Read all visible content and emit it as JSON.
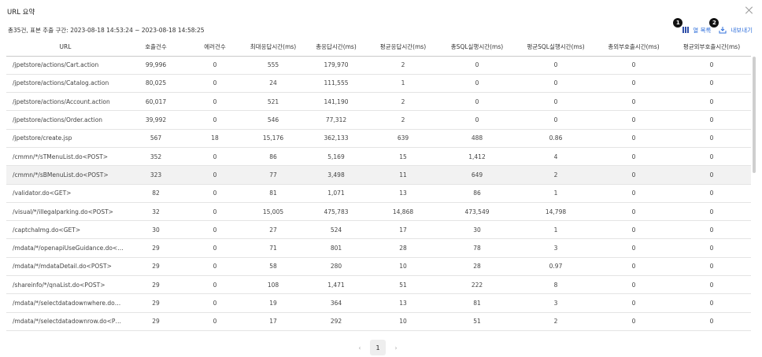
{
  "dialog": {
    "title": "URL 요약"
  },
  "summary": "총35건, 표본 추출 구간: 2023-08-18 14:53:24 ~ 2023-08-18 14:58:25",
  "toolbar": {
    "columns_label": "열 목록",
    "export_label": "내보내기",
    "badge1": "1",
    "badge2": "2"
  },
  "table": {
    "columns": [
      "URL",
      "호출건수",
      "에러건수",
      "최대응답시간(ms)",
      "총응답시간(ms)",
      "평균응답시간(ms)",
      "총SQL실행시간(ms)",
      "평균SQL실행시간(ms)",
      "총외부호출시간(ms)",
      "평균외부호출시간(ms)"
    ],
    "rows": [
      [
        "/jpetstore/actions/Cart.action",
        "99,996",
        "0",
        "555",
        "179,970",
        "2",
        "0",
        "0",
        "0",
        "0"
      ],
      [
        "/jpetstore/actions/Catalog.action",
        "80,025",
        "0",
        "24",
        "111,555",
        "1",
        "0",
        "0",
        "0",
        "0"
      ],
      [
        "/jpetstore/actions/Account.action",
        "60,017",
        "0",
        "521",
        "141,190",
        "2",
        "0",
        "0",
        "0",
        "0"
      ],
      [
        "/jpetstore/actions/Order.action",
        "39,992",
        "0",
        "546",
        "77,312",
        "2",
        "0",
        "0",
        "0",
        "0"
      ],
      [
        "/jpetstore/create.jsp",
        "567",
        "18",
        "15,176",
        "362,133",
        "639",
        "488",
        "0.86",
        "0",
        "0"
      ],
      [
        "/cmmn/*/sTMenuList.do<POST>",
        "352",
        "0",
        "86",
        "5,169",
        "15",
        "1,412",
        "4",
        "0",
        "0"
      ],
      [
        "/cmmn/*/sBMenuList.do<POST>",
        "323",
        "0",
        "77",
        "3,498",
        "11",
        "649",
        "2",
        "0",
        "0"
      ],
      [
        "/validator.do<GET>",
        "82",
        "0",
        "81",
        "1,071",
        "13",
        "86",
        "1",
        "0",
        "0"
      ],
      [
        "/visual/*/illegalparking.do<POST>",
        "32",
        "0",
        "15,005",
        "475,783",
        "14,868",
        "473,549",
        "14,798",
        "0",
        "0"
      ],
      [
        "/captchaImg.do<GET>",
        "30",
        "0",
        "27",
        "524",
        "17",
        "30",
        "1",
        "0",
        "0"
      ],
      [
        "/mdata/*/openapiUseGuidance.do<P···",
        "29",
        "0",
        "71",
        "801",
        "28",
        "78",
        "3",
        "0",
        "0"
      ],
      [
        "/mdata/*/mdataDetail.do<POST>",
        "29",
        "0",
        "58",
        "280",
        "10",
        "28",
        "0.97",
        "0",
        "0"
      ],
      [
        "/shareinfo/*/qnaList.do<POST>",
        "29",
        "0",
        "108",
        "1,471",
        "51",
        "222",
        "8",
        "0",
        "0"
      ],
      [
        "/mdata/*/selectdatadownwhere.do<···",
        "29",
        "0",
        "19",
        "364",
        "13",
        "81",
        "3",
        "0",
        "0"
      ],
      [
        "/mdata/*/selectdatadownrow.do<PO···",
        "29",
        "0",
        "17",
        "292",
        "10",
        "51",
        "2",
        "0",
        "0"
      ]
    ]
  },
  "pagination": {
    "prev": "‹",
    "current": "1",
    "next": "›"
  }
}
